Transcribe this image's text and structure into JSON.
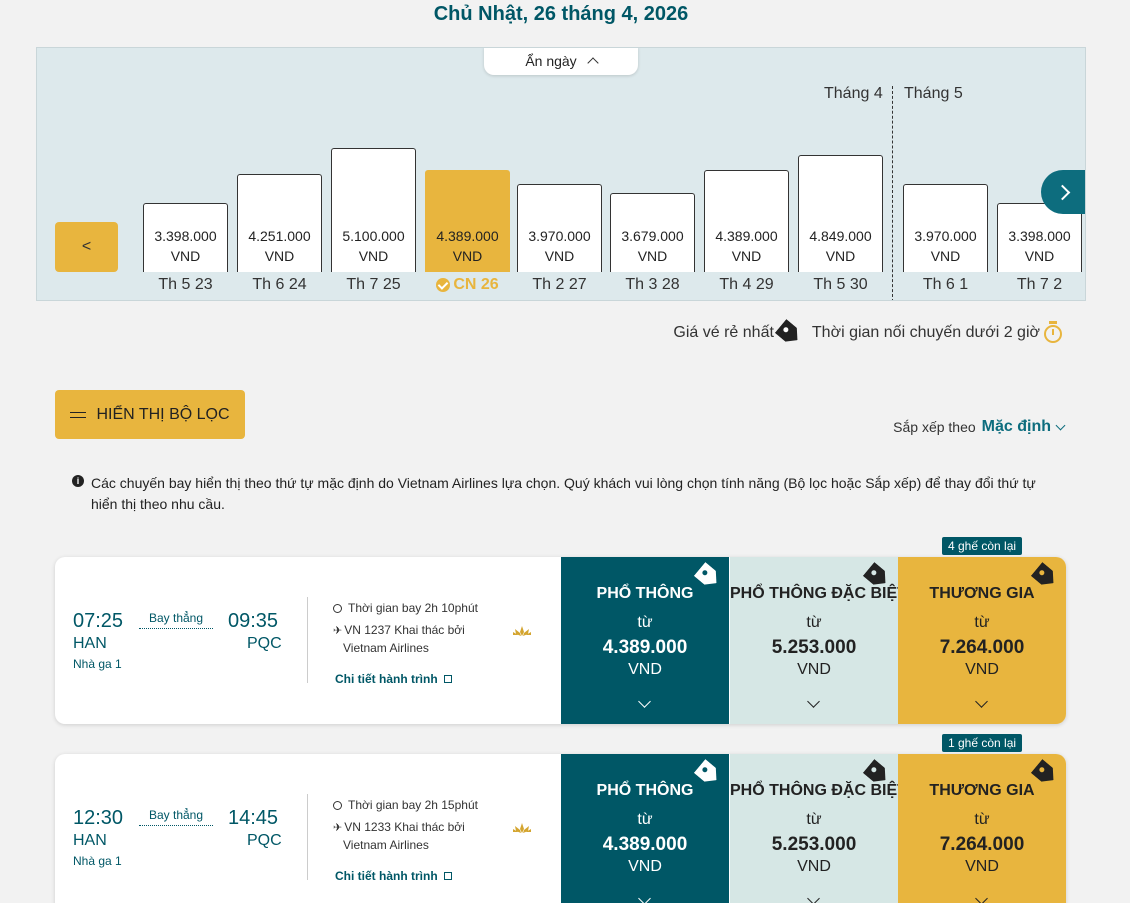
{
  "header": {
    "date_title": "Chủ Nhật, 26 tháng 4, 2026"
  },
  "calendar": {
    "hide_label": "Ẩn ngày",
    "months": [
      "Tháng 4",
      "Tháng 5"
    ],
    "prev_label": "<",
    "currency": "VND",
    "days": [
      {
        "label": "Th 5 23",
        "price": "3.398.000",
        "level": 0.56
      },
      {
        "label": "Th 6 24",
        "price": "4.251.000",
        "level": 0.79
      },
      {
        "label": "Th 7 25",
        "price": "5.100.000",
        "level": 1.0
      },
      {
        "label": "CN 26",
        "price": "4.389.000",
        "level": 0.82,
        "selected": true
      },
      {
        "label": "Th 2 27",
        "price": "3.970.000",
        "level": 0.71
      },
      {
        "label": "Th 3 28",
        "price": "3.679.000",
        "level": 0.64
      },
      {
        "label": "Th 4 29",
        "price": "4.389.000",
        "level": 0.82
      },
      {
        "label": "Th 5 30",
        "price": "4.849.000",
        "level": 0.94
      },
      {
        "label": "Th 6 1",
        "price": "3.970.000",
        "level": 0.71
      },
      {
        "label": "Th 7 2",
        "price": "3.398.000",
        "level": 0.56
      }
    ]
  },
  "legend": {
    "cheapest": "Giá vé rẻ nhất",
    "short_connection": "Thời gian nối chuyến dưới 2 giờ"
  },
  "filter": {
    "label": "HIỂN THỊ BỘ LỌC"
  },
  "sort": {
    "label": "Sắp xếp theo",
    "value": "Mặc định"
  },
  "notice": "Các chuyến bay hiển thị theo thứ tự mặc định do Vietnam Airlines lựa chọn. Quý khách vui lòng chọn tính năng (Bộ lọc hoặc Sắp xếp) để thay đổi thứ tự hiển thị theo nhu cầu.",
  "flights": [
    {
      "seats_left": "4 ghế còn lại",
      "dep_time": "07:25",
      "arr_time": "09:35",
      "dep_code": "HAN",
      "arr_code": "PQC",
      "terminal": "Nhà ga 1",
      "nonstop": "Bay thẳng",
      "duration": "Thời gian bay 2h 10phút",
      "flight_no": "VN 1237 Khai thác bởi",
      "operator": "Vietnam Airlines",
      "detail_link": "Chi tiết hành trình",
      "fares": [
        {
          "title": "PHỔ THÔNG",
          "from": "từ",
          "price": "4.389.000",
          "currency": "VND"
        },
        {
          "title": "PHỔ THÔNG ĐẶC BIỆT",
          "from": "từ",
          "price": "5.253.000",
          "currency": "VND"
        },
        {
          "title": "THƯƠNG GIA",
          "from": "từ",
          "price": "7.264.000",
          "currency": "VND"
        }
      ]
    },
    {
      "seats_left": "1 ghế còn lại",
      "dep_time": "12:30",
      "arr_time": "14:45",
      "dep_code": "HAN",
      "arr_code": "PQC",
      "terminal": "Nhà ga 1",
      "nonstop": "Bay thẳng",
      "duration": "Thời gian bay 2h 15phút",
      "flight_no": "VN 1233 Khai thác bởi",
      "operator": "Vietnam Airlines",
      "detail_link": "Chi tiết hành trình",
      "fares": [
        {
          "title": "PHỔ THÔNG",
          "from": "từ",
          "price": "4.389.000",
          "currency": "VND"
        },
        {
          "title": "PHỔ THÔNG ĐẶC BIỆT",
          "from": "từ",
          "price": "5.253.000",
          "currency": "VND"
        },
        {
          "title": "THƯƠNG GIA",
          "from": "từ",
          "price": "7.264.000",
          "currency": "VND"
        }
      ]
    }
  ],
  "colors": {
    "primary": "#005766",
    "accent": "#e8b53e",
    "premium": "#d6e7e5"
  }
}
